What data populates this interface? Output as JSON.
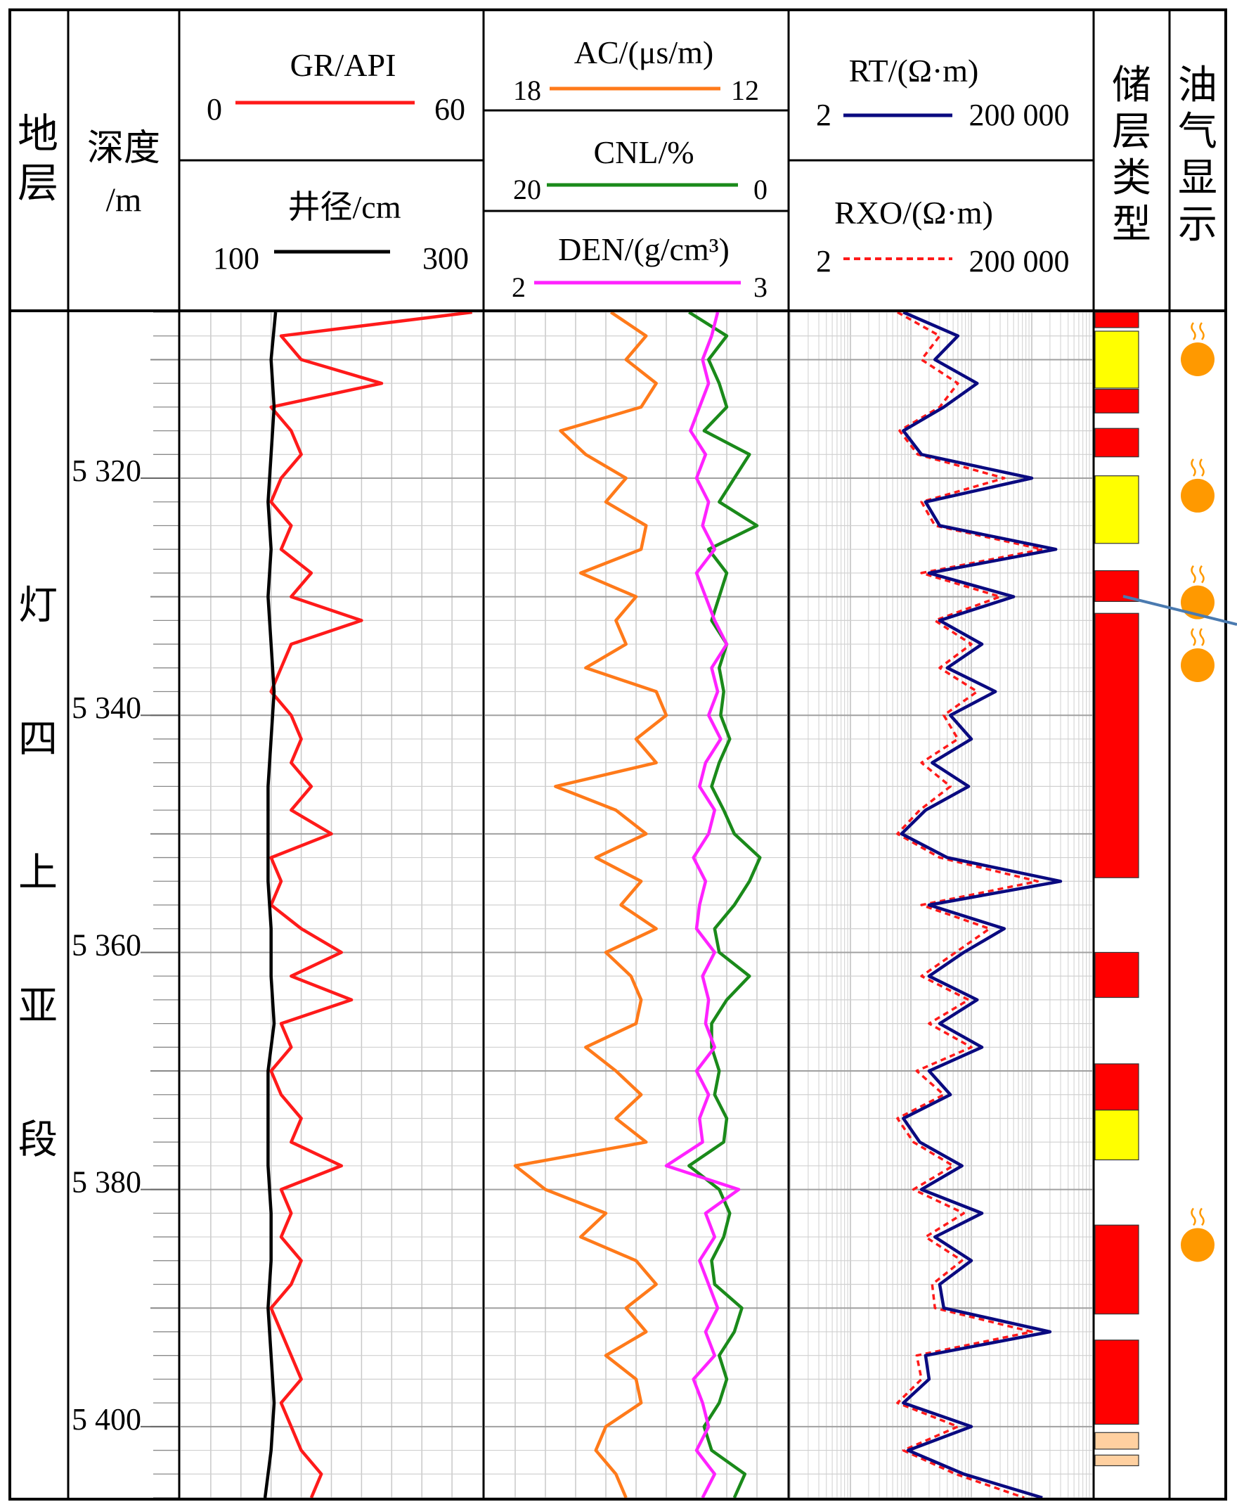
{
  "header": {
    "stratum_label": "地层",
    "depth_label": "深度",
    "depth_unit": "/m",
    "reservoir_label": "储层类型",
    "oil_gas_label": "油气显示"
  },
  "stratum_name": "灯四上亚段",
  "colors": {
    "GR": "#ff1a1a",
    "CAL": "#000000",
    "AC": "#ff7a1a",
    "CNL": "#1a8a1a",
    "DEN": "#ff22ff",
    "RT": "#0a0a80",
    "RXO": "#ff1a1a",
    "reservoir_red": "#ff0000",
    "reservoir_yellow": "#ffff00",
    "reservoir_tan": "#ffd0a0",
    "oil_gas_marker": "#ff9900",
    "pointer_line": "#4a7ab0"
  },
  "chart_data": {
    "type": "line",
    "depth_axis": {
      "label": "深度/m",
      "range": [
        5306,
        5406
      ],
      "ticks": [
        5320,
        5340,
        5360,
        5380,
        5400
      ],
      "tick_labels": [
        "5 320",
        "5 340",
        "5 360",
        "5 380",
        "5 400"
      ],
      "inverted": true
    },
    "grid": true,
    "tracks": [
      {
        "name": "track-gr-cal",
        "series": [
          {
            "name": "GR",
            "unit": "API",
            "title": "GR/API",
            "scale": [
              0,
              60
            ],
            "scale_labels": [
              "0",
              "60"
            ],
            "style": "solid",
            "depth": [
              5306,
              5308,
              5310,
              5312,
              5314,
              5316,
              5318,
              5320,
              5322,
              5324,
              5326,
              5328,
              5330,
              5332,
              5334,
              5336,
              5338,
              5340,
              5342,
              5344,
              5346,
              5348,
              5350,
              5352,
              5354,
              5356,
              5358,
              5360,
              5362,
              5364,
              5366,
              5368,
              5370,
              5372,
              5374,
              5376,
              5378,
              5380,
              5382,
              5384,
              5386,
              5388,
              5390,
              5392,
              5394,
              5396,
              5398,
              5400,
              5402,
              5404,
              5406
            ],
            "values": [
              58,
              20,
              24,
              40,
              18,
              22,
              24,
              20,
              18,
              22,
              20,
              26,
              22,
              36,
              22,
              20,
              18,
              22,
              24,
              22,
              26,
              22,
              30,
              18,
              20,
              18,
              24,
              32,
              22,
              34,
              20,
              22,
              18,
              20,
              24,
              22,
              32,
              20,
              22,
              20,
              24,
              22,
              18,
              20,
              22,
              24,
              20,
              22,
              24,
              28,
              26
            ]
          },
          {
            "name": "CAL",
            "unit": "cm",
            "title": "井径/cm",
            "scale": [
              100,
              300
            ],
            "scale_labels": [
              "100",
              "300"
            ],
            "style": "solid",
            "depth": [
              5306,
              5310,
              5314,
              5318,
              5322,
              5326,
              5330,
              5334,
              5338,
              5342,
              5346,
              5350,
              5354,
              5358,
              5362,
              5366,
              5370,
              5374,
              5378,
              5382,
              5386,
              5390,
              5394,
              5398,
              5402,
              5406
            ],
            "values": [
              163,
              160,
              162,
              160,
              158,
              160,
              158,
              160,
              162,
              160,
              158,
              158,
              158,
              160,
              160,
              162,
              158,
              158,
              158,
              160,
              160,
              158,
              160,
              162,
              160,
              156
            ]
          }
        ]
      },
      {
        "name": "track-ac-cnl-den",
        "series": [
          {
            "name": "AC",
            "unit": "μs/m",
            "title": "AC/(μs/m)",
            "scale": [
              18,
              12
            ],
            "scale_labels": [
              "18",
              "12"
            ],
            "style": "solid",
            "depth": [
              5306,
              5308,
              5310,
              5312,
              5314,
              5316,
              5318,
              5320,
              5322,
              5324,
              5326,
              5328,
              5330,
              5332,
              5334,
              5336,
              5338,
              5340,
              5342,
              5344,
              5346,
              5348,
              5350,
              5352,
              5354,
              5356,
              5358,
              5360,
              5362,
              5364,
              5366,
              5368,
              5370,
              5372,
              5374,
              5376,
              5378,
              5380,
              5382,
              5384,
              5386,
              5388,
              5390,
              5392,
              5394,
              5396,
              5398,
              5400,
              5402,
              5404,
              5406
            ],
            "values": [
              15.5,
              14.8,
              15.2,
              14.6,
              14.9,
              16.5,
              16.0,
              15.2,
              15.6,
              14.8,
              14.9,
              16.1,
              15.0,
              15.4,
              15.2,
              16.0,
              14.6,
              14.4,
              15.0,
              14.6,
              16.6,
              15.4,
              14.8,
              15.8,
              14.9,
              15.3,
              14.6,
              15.6,
              15.1,
              14.9,
              15.0,
              16.0,
              15.4,
              14.9,
              15.4,
              14.8,
              17.4,
              16.8,
              15.6,
              16.1,
              15.0,
              14.6,
              15.2,
              14.8,
              15.6,
              15.0,
              14.9,
              15.6,
              15.8,
              15.4,
              15.2
            ]
          },
          {
            "name": "CNL",
            "unit": "%",
            "title": "CNL/%",
            "scale": [
              20,
              0
            ],
            "scale_labels": [
              "20",
              "0"
            ],
            "style": "solid",
            "depth": [
              5306,
              5308,
              5310,
              5312,
              5314,
              5316,
              5318,
              5320,
              5322,
              5324,
              5326,
              5328,
              5330,
              5332,
              5334,
              5336,
              5338,
              5340,
              5342,
              5344,
              5346,
              5348,
              5350,
              5352,
              5354,
              5356,
              5358,
              5360,
              5362,
              5364,
              5366,
              5368,
              5370,
              5372,
              5374,
              5376,
              5378,
              5380,
              5382,
              5384,
              5386,
              5388,
              5390,
              5392,
              5394,
              5396,
              5398,
              5400,
              5402,
              5404,
              5406
            ],
            "values": [
              6.5,
              4.0,
              5.2,
              4.5,
              4.0,
              5.5,
              2.5,
              3.5,
              4.5,
              2.0,
              5.2,
              4.0,
              4.5,
              5.0,
              4.0,
              4.5,
              4.2,
              4.4,
              3.8,
              4.5,
              5.0,
              4.2,
              3.5,
              1.8,
              2.5,
              3.5,
              4.8,
              4.5,
              2.5,
              4.0,
              5.0,
              5.0,
              4.5,
              4.8,
              4.0,
              4.2,
              6.5,
              4.5,
              3.8,
              4.2,
              5.0,
              4.8,
              3.0,
              3.5,
              4.5,
              4.0,
              4.5,
              5.5,
              5.0,
              2.8,
              3.5
            ]
          },
          {
            "name": "DEN",
            "unit": "g/cm³",
            "title": "DEN/(g/cm³)",
            "scale": [
              2,
              3
            ],
            "scale_labels": [
              "2",
              "3"
            ],
            "style": "solid",
            "depth": [
              5306,
              5308,
              5310,
              5312,
              5314,
              5316,
              5318,
              5320,
              5322,
              5324,
              5326,
              5328,
              5330,
              5332,
              5334,
              5336,
              5338,
              5340,
              5342,
              5344,
              5346,
              5348,
              5350,
              5352,
              5354,
              5356,
              5358,
              5360,
              5362,
              5364,
              5366,
              5368,
              5370,
              5372,
              5374,
              5376,
              5378,
              5380,
              5382,
              5384,
              5386,
              5388,
              5390,
              5392,
              5394,
              5396,
              5398,
              5400,
              5402,
              5404,
              5406
            ],
            "values": [
              2.77,
              2.75,
              2.72,
              2.74,
              2.71,
              2.68,
              2.73,
              2.7,
              2.74,
              2.72,
              2.76,
              2.7,
              2.73,
              2.76,
              2.8,
              2.75,
              2.77,
              2.74,
              2.78,
              2.73,
              2.71,
              2.76,
              2.74,
              2.69,
              2.73,
              2.71,
              2.7,
              2.76,
              2.72,
              2.74,
              2.73,
              2.76,
              2.7,
              2.74,
              2.71,
              2.72,
              2.6,
              2.84,
              2.73,
              2.76,
              2.71,
              2.74,
              2.77,
              2.73,
              2.76,
              2.69,
              2.72,
              2.74,
              2.7,
              2.76,
              2.72
            ]
          }
        ]
      },
      {
        "name": "track-rt-rxo",
        "scale_type": "log",
        "series": [
          {
            "name": "RT",
            "unit": "Ω·m",
            "title": "RT/(Ω·m)",
            "scale": [
              2,
              200000
            ],
            "scale_labels": [
              "2",
              "200 000"
            ],
            "style": "solid",
            "depth": [
              5306,
              5308,
              5310,
              5312,
              5314,
              5316,
              5318,
              5320,
              5322,
              5324,
              5326,
              5328,
              5330,
              5332,
              5334,
              5336,
              5338,
              5340,
              5342,
              5344,
              5346,
              5348,
              5350,
              5352,
              5354,
              5356,
              5358,
              5360,
              5362,
              5364,
              5366,
              5368,
              5370,
              5372,
              5374,
              5376,
              5378,
              5380,
              5382,
              5384,
              5386,
              5388,
              5390,
              5392,
              5394,
              5396,
              5398,
              5400,
              5402,
              5404,
              5406
            ],
            "values": [
              150,
              1200,
              500,
              2500,
              700,
              150,
              300,
              20000,
              350,
              600,
              50000,
              400,
              10000,
              600,
              3000,
              800,
              5000,
              900,
              2000,
              450,
              1800,
              350,
              140,
              800,
              60000,
              400,
              7000,
              1500,
              400,
              2500,
              600,
              3000,
              400,
              900,
              150,
              280,
              1400,
              300,
              3000,
              500,
              2000,
              600,
              700,
              40000,
              350,
              400,
              150,
              2000,
              180,
              1500,
              30000
            ]
          },
          {
            "name": "RXO",
            "unit": "Ω·m",
            "title": "RXO/(Ω·m)",
            "scale": [
              2,
              200000
            ],
            "scale_labels": [
              "2",
              "200 000"
            ],
            "style": "dashed",
            "depth": [
              5306,
              5308,
              5310,
              5312,
              5314,
              5316,
              5318,
              5320,
              5322,
              5324,
              5326,
              5328,
              5330,
              5332,
              5334,
              5336,
              5338,
              5340,
              5342,
              5344,
              5346,
              5348,
              5350,
              5352,
              5354,
              5356,
              5358,
              5360,
              5362,
              5364,
              5366,
              5368,
              5370,
              5372,
              5374,
              5376,
              5378,
              5380,
              5382,
              5384,
              5386,
              5388,
              5390,
              5392,
              5394,
              5396,
              5398,
              5400,
              5402,
              5404,
              5406
            ],
            "values": [
              120,
              600,
              300,
              1200,
              600,
              130,
              260,
              7000,
              300,
              500,
              30000,
              300,
              6000,
              500,
              2000,
              600,
              2500,
              700,
              1200,
              300,
              900,
              280,
              120,
              600,
              25000,
              300,
              4000,
              1100,
              300,
              1800,
              400,
              2000,
              250,
              700,
              120,
              220,
              1000,
              220,
              1500,
              350,
              1400,
              450,
              500,
              20000,
              250,
              300,
              120,
              1200,
              150,
              1100,
              15000
            ]
          }
        ]
      }
    ],
    "reservoir_intervals": [
      {
        "top": 5306.0,
        "base": 5307.3,
        "type": "red"
      },
      {
        "top": 5307.6,
        "base": 5312.4,
        "type": "yellow"
      },
      {
        "top": 5312.5,
        "base": 5314.5,
        "type": "red"
      },
      {
        "top": 5315.8,
        "base": 5318.2,
        "type": "red"
      },
      {
        "top": 5319.8,
        "base": 5325.5,
        "type": "yellow"
      },
      {
        "top": 5327.8,
        "base": 5330.4,
        "type": "red"
      },
      {
        "top": 5331.4,
        "base": 5353.7,
        "type": "red"
      },
      {
        "top": 5360.0,
        "base": 5363.8,
        "type": "red"
      },
      {
        "top": 5369.4,
        "base": 5373.3,
        "type": "red"
      },
      {
        "top": 5373.3,
        "base": 5377.5,
        "type": "yellow"
      },
      {
        "top": 5383.0,
        "base": 5390.5,
        "type": "red"
      },
      {
        "top": 5392.7,
        "base": 5399.8,
        "type": "red"
      },
      {
        "top": 5400.5,
        "base": 5401.9,
        "type": "tan"
      },
      {
        "top": 5402.4,
        "base": 5403.3,
        "type": "tan"
      }
    ],
    "oil_gas_shows": [
      5309.5,
      5321.0,
      5330.0,
      5335.3,
      5384.2
    ]
  }
}
